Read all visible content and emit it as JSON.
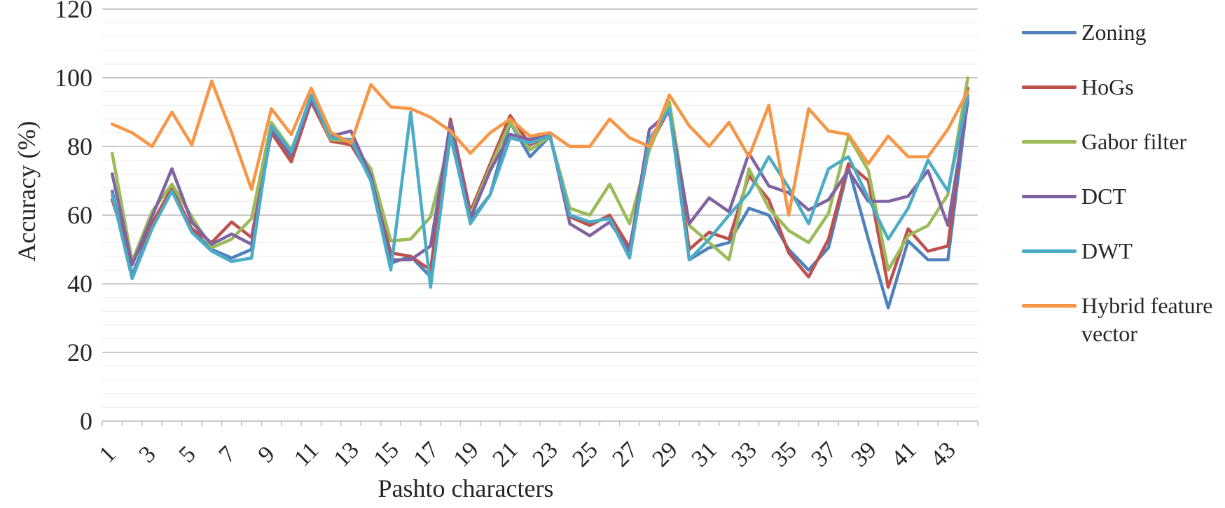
{
  "y_axis": {
    "title": "Accuracy (%)",
    "tick_labels": [
      "0",
      "20",
      "40",
      "60",
      "80",
      "100",
      "120"
    ],
    "min": 0,
    "max": 120,
    "major_unit": 20,
    "minor_unit": 4
  },
  "x_axis": {
    "title": "Pashto characters",
    "tick_labels": [
      "1",
      "3",
      "5",
      "7",
      "9",
      "11",
      "13",
      "15",
      "17",
      "19",
      "21",
      "23",
      "25",
      "27",
      "29",
      "31",
      "33",
      "35",
      "37",
      "39",
      "41",
      "43"
    ]
  },
  "legend": {
    "position": "right",
    "entries": [
      "Zoning",
      "HoGs",
      "Gabor filter",
      "DCT",
      "DWT",
      "Hybrid feature vector"
    ]
  },
  "colors": {
    "zoning": "#4F81BD",
    "hogs": "#C0504D",
    "gabor": "#9BBB59",
    "dct": "#8064A2",
    "dwt": "#4BACC6",
    "hybrid": "#F79646",
    "grid_major": "#c9c9c9",
    "grid_minor": "#ececec",
    "tick": "#bfbfbf",
    "text": "#262626"
  },
  "chart_data": {
    "type": "line",
    "title": "",
    "xlabel": "Pashto characters",
    "ylabel": "Accuracy (%)",
    "ylim": [
      0,
      120
    ],
    "grid": "on",
    "legend_position": "right",
    "x": [
      1,
      2,
      3,
      4,
      5,
      6,
      7,
      8,
      9,
      10,
      11,
      12,
      13,
      14,
      15,
      16,
      17,
      18,
      19,
      20,
      21,
      22,
      23,
      24,
      25,
      26,
      27,
      28,
      29,
      30,
      31,
      32,
      33,
      34,
      35,
      36,
      37,
      38,
      39,
      40,
      41,
      42,
      43,
      44
    ],
    "series": [
      {
        "name": "Zoning",
        "color": "#4F81BD",
        "values": [
          67,
          42.5,
          57,
          67.5,
          55.5,
          50,
          47.5,
          50,
          85,
          77,
          94,
          82,
          82,
          70,
          46,
          48,
          42,
          83.5,
          58.5,
          66,
          87,
          77,
          83,
          60,
          58,
          59,
          48,
          82,
          91,
          47,
          50.5,
          52,
          62,
          60,
          50,
          44,
          50.5,
          74,
          53,
          33,
          52.5,
          47,
          47,
          94
        ]
      },
      {
        "name": "HoGs",
        "color": "#C0504D",
        "values": [
          64.5,
          46,
          57.5,
          68,
          56,
          52,
          58,
          53.5,
          84,
          75.5,
          93,
          81.5,
          80.5,
          71,
          49,
          48,
          44,
          88,
          61,
          75,
          89,
          80.5,
          83,
          59.5,
          57,
          60,
          50.5,
          80,
          91,
          50,
          55,
          53,
          71.5,
          64.5,
          49,
          42,
          53,
          75,
          70,
          39,
          56,
          49.5,
          51,
          97
        ]
      },
      {
        "name": "Gabor filter",
        "color": "#9BBB59",
        "values": [
          78,
          46.5,
          61,
          69,
          59.5,
          50.5,
          53,
          59,
          87,
          79,
          94,
          82,
          81.5,
          73.5,
          52.5,
          53,
          59.5,
          82.5,
          60,
          74,
          87,
          79,
          83,
          62,
          60,
          69,
          57.5,
          79,
          93,
          57,
          52,
          47,
          73.5,
          62,
          55.5,
          52,
          60.5,
          83,
          73,
          44,
          54,
          57,
          66,
          100
        ]
      },
      {
        "name": "DCT",
        "color": "#8064A2",
        "values": [
          72,
          45.5,
          59.5,
          73.5,
          58,
          51.5,
          54.5,
          51.5,
          84.5,
          78,
          93.5,
          83,
          84.5,
          71.5,
          47,
          47,
          51,
          87,
          59,
          73,
          83.5,
          82,
          83.5,
          57.5,
          54,
          58,
          49.5,
          85,
          90,
          57.5,
          65,
          61,
          78,
          68.5,
          66.5,
          61.5,
          64.5,
          73,
          64,
          64,
          65.5,
          73,
          57,
          93
        ]
      },
      {
        "name": "DWT",
        "color": "#4BACC6",
        "values": [
          66,
          41.5,
          56,
          67,
          55,
          49.5,
          46.5,
          47.5,
          86,
          78.5,
          95,
          82.5,
          82,
          70,
          44,
          90,
          39,
          83.5,
          57.5,
          66,
          82.5,
          81,
          83,
          60,
          58,
          59,
          47.5,
          82,
          91,
          47,
          53,
          60,
          66.5,
          77,
          68,
          57.5,
          73.5,
          77,
          65,
          53,
          62,
          76,
          67,
          95
        ]
      },
      {
        "name": "Hybrid feature vector",
        "color": "#F79646",
        "values": [
          86.5,
          84,
          80,
          90,
          80.5,
          99,
          84,
          67.5,
          91,
          83.5,
          97,
          84,
          81,
          98,
          91.5,
          91,
          88.5,
          84.5,
          78,
          84,
          88,
          83,
          84,
          80,
          80,
          88,
          82.5,
          80,
          95,
          86,
          80,
          87,
          77,
          92,
          60,
          91,
          84.5,
          83.5,
          75,
          83,
          77,
          77,
          85,
          96
        ]
      }
    ]
  }
}
